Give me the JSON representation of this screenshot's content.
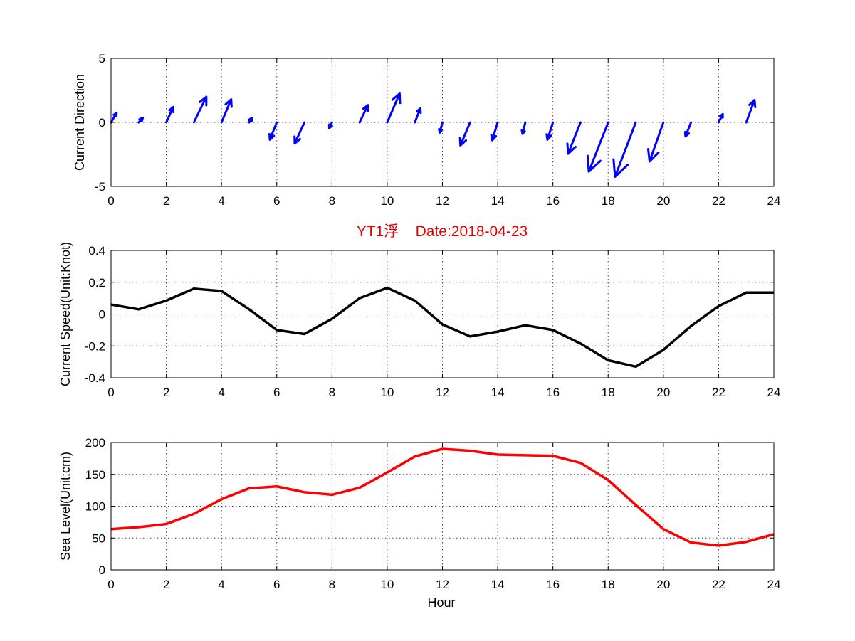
{
  "chart_data": [
    {
      "type": "quiver",
      "ylabel": "Current Direction",
      "xlim": [
        0,
        24
      ],
      "ylim": [
        -5,
        5
      ],
      "xticks": [
        0,
        2,
        4,
        6,
        8,
        10,
        12,
        14,
        16,
        18,
        20,
        22,
        24
      ],
      "yticks": [
        -5,
        0,
        5
      ],
      "grid": true,
      "color": "#0000ff",
      "x": [
        0,
        1,
        2,
        3,
        4,
        5,
        6,
        7,
        8,
        9,
        10,
        11,
        12,
        13,
        14,
        15,
        16,
        17,
        18,
        19,
        20,
        21,
        22,
        23
      ],
      "u": [
        0.2,
        0.15,
        0.25,
        0.45,
        0.35,
        0.1,
        -0.25,
        -0.35,
        -0.1,
        0.3,
        0.45,
        0.2,
        -0.1,
        -0.35,
        -0.2,
        -0.1,
        -0.2,
        -0.45,
        -0.7,
        -0.75,
        -0.5,
        -0.2,
        0.15,
        0.3
      ],
      "v": [
        0.75,
        0.35,
        1.2,
        2.0,
        1.8,
        0.35,
        -1.35,
        -1.65,
        -0.45,
        1.35,
        2.25,
        1.1,
        -0.8,
        -1.8,
        -1.4,
        -0.9,
        -1.35,
        -2.45,
        -3.85,
        -4.25,
        -3.05,
        -1.1,
        0.65,
        1.75
      ]
    },
    {
      "type": "line",
      "title": "YT1浮    Date:2018-04-23",
      "ylabel": "Current Speed(Unit:Knot)",
      "xlim": [
        0,
        24
      ],
      "ylim": [
        -0.4,
        0.4
      ],
      "xticks": [
        0,
        2,
        4,
        6,
        8,
        10,
        12,
        14,
        16,
        18,
        20,
        22,
        24
      ],
      "yticks": [
        -0.4,
        -0.2,
        0,
        0.2,
        0.4
      ],
      "grid": true,
      "color": "#000000",
      "x": [
        0,
        1,
        2,
        3,
        4,
        5,
        6,
        7,
        8,
        9,
        10,
        11,
        12,
        13,
        14,
        15,
        16,
        17,
        18,
        19,
        20,
        21,
        22,
        23,
        24
      ],
      "y": [
        0.06,
        0.03,
        0.085,
        0.16,
        0.145,
        0.03,
        -0.1,
        -0.125,
        -0.03,
        0.1,
        0.165,
        0.085,
        -0.065,
        -0.14,
        -0.11,
        -0.07,
        -0.1,
        -0.185,
        -0.29,
        -0.33,
        -0.225,
        -0.075,
        0.05,
        0.135,
        0.135
      ]
    },
    {
      "type": "line",
      "xlabel": "Hour",
      "ylabel": "Sea Level(Unit:cm)",
      "xlim": [
        0,
        24
      ],
      "ylim": [
        0,
        200
      ],
      "xticks": [
        0,
        2,
        4,
        6,
        8,
        10,
        12,
        14,
        16,
        18,
        20,
        22,
        24
      ],
      "yticks": [
        0,
        50,
        100,
        150,
        200
      ],
      "grid": true,
      "color": "#ff0000",
      "x": [
        0,
        1,
        2,
        3,
        4,
        5,
        6,
        7,
        8,
        9,
        10,
        11,
        12,
        13,
        14,
        15,
        16,
        17,
        18,
        19,
        20,
        21,
        22,
        23,
        24
      ],
      "y": [
        64,
        67,
        72,
        88,
        111,
        128,
        131,
        122,
        118,
        129,
        153,
        178,
        190,
        187,
        181,
        180,
        179,
        168,
        141,
        102,
        64,
        43,
        38,
        44,
        56
      ]
    }
  ]
}
